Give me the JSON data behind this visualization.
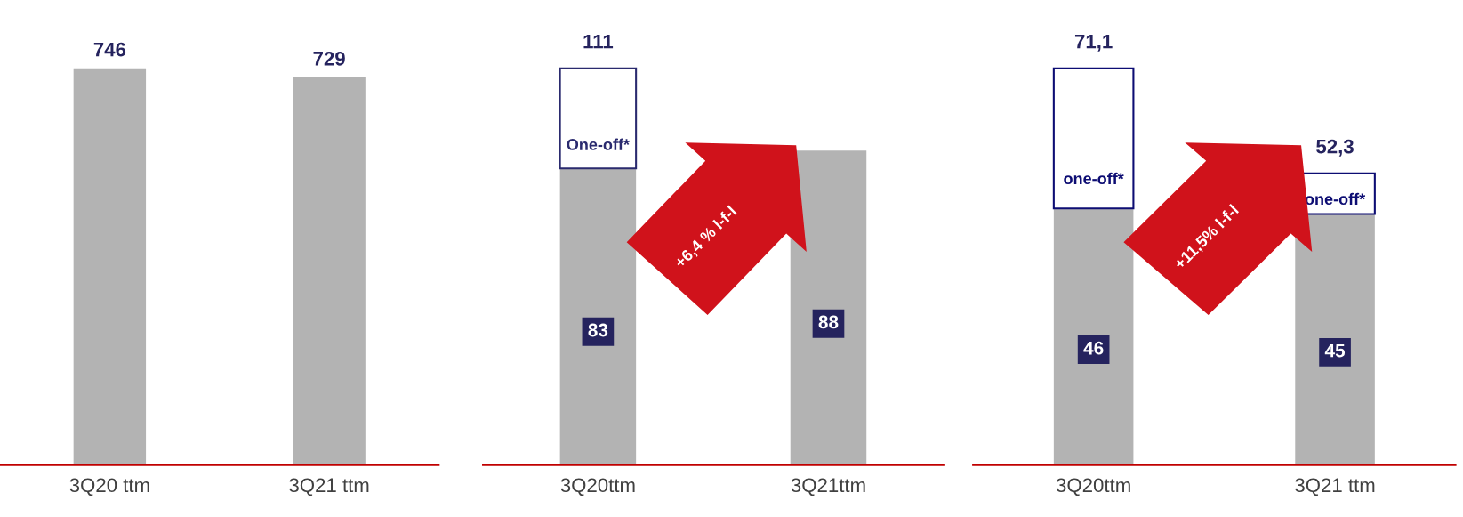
{
  "chart_data": [
    {
      "type": "bar",
      "categories": [
        "3Q20 ttm",
        "3Q21 ttm"
      ],
      "series": [
        {
          "color": "#b3b3b3",
          "values": [
            746,
            729
          ]
        }
      ],
      "data_labels": true,
      "grid": false
    },
    {
      "type": "bar",
      "stacked": true,
      "categories": [
        "3Q20ttm",
        "3Q21ttm"
      ],
      "series": [
        {
          "color": "#b3b3b3",
          "values": [
            83,
            88
          ],
          "value_labels": [
            "83",
            "88"
          ]
        },
        {
          "name": "One-off*",
          "color": "#2a2a6e",
          "values": [
            28,
            null
          ]
        }
      ],
      "totals": [
        "111",
        null
      ],
      "annotations": [
        "+6,4 % l-f-l"
      ],
      "grid": false
    },
    {
      "type": "bar",
      "stacked": true,
      "categories": [
        "3Q20ttm",
        "3Q21 ttm"
      ],
      "series": [
        {
          "color": "#b3b3b3",
          "values": [
            46,
            45
          ],
          "value_labels": [
            "46",
            "45"
          ]
        },
        {
          "name": "one-off*",
          "color": "#0d0d73",
          "values": [
            25.1,
            7.3
          ]
        }
      ],
      "totals": [
        "71,1",
        "52,3"
      ],
      "annotations": [
        "+11,5% l-f-l"
      ],
      "grid": false
    }
  ]
}
